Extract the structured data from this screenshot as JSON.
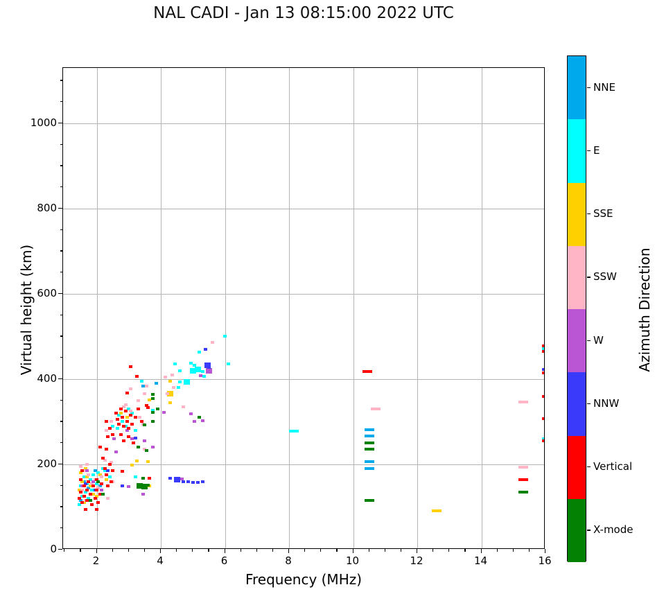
{
  "title": "NAL CADI - Jan 13 08:15:00 2022 UTC",
  "chart_data": {
    "type": "scatter",
    "title": "NAL CADI - Jan 13 08:15:00 2022 UTC",
    "xlabel": "Frequency (MHz)",
    "ylabel": "Virtual height (km)",
    "xlim": [
      0.95,
      16
    ],
    "ylim": [
      0,
      1130
    ],
    "xticks": [
      2,
      4,
      6,
      8,
      10,
      12,
      14,
      16
    ],
    "yticks": [
      0,
      200,
      400,
      600,
      800,
      1000
    ],
    "xminor_step": 0.5,
    "yminor_step": 50,
    "grid": true,
    "grid_color": "#b4b4b4",
    "colorbar": {
      "label": "Azimuth Direction",
      "categories_top_to_bottom": [
        {
          "name": "NNE",
          "color": "#00A8EC"
        },
        {
          "name": "E",
          "color": "#00FFFF"
        },
        {
          "name": "SSE",
          "color": "#FFD000"
        },
        {
          "name": "SSW",
          "color": "#FFB5C5"
        },
        {
          "name": "W",
          "color": "#BA55D3"
        },
        {
          "name": "NNW",
          "color": "#3A3AFA"
        },
        {
          "name": "Vertical",
          "color": "#FF0000"
        },
        {
          "name": "X-mode",
          "color": "#038103"
        }
      ]
    },
    "point_style_codes": {
      "0": "small square",
      "1": "wide dash",
      "2": "large block"
    },
    "series": [
      {
        "name": "NNE",
        "color": "#00A8EC",
        "points": [
          [
            1.6,
            160
          ],
          [
            1.75,
            145
          ],
          [
            1.95,
            185
          ],
          [
            2.1,
            150
          ],
          [
            1.5,
            115
          ],
          [
            3.85,
            390
          ],
          [
            3.45,
            383
          ],
          [
            10.5,
            281,
            1
          ],
          [
            10.5,
            267,
            1
          ],
          [
            10.5,
            206,
            1
          ],
          [
            10.5,
            190,
            1
          ]
        ]
      },
      {
        "name": "E",
        "color": "#00FFFF",
        "points": [
          [
            1.5,
            150
          ],
          [
            1.55,
            125
          ],
          [
            1.6,
            170
          ],
          [
            1.65,
            135
          ],
          [
            1.7,
            155
          ],
          [
            1.8,
            165
          ],
          [
            1.85,
            140
          ],
          [
            1.9,
            175
          ],
          [
            2.0,
            155
          ],
          [
            2.05,
            180
          ],
          [
            2.2,
            190
          ],
          [
            2.25,
            185
          ],
          [
            1.45,
            105
          ],
          [
            2.4,
            170
          ],
          [
            1.75,
            120
          ],
          [
            2.5,
            290
          ],
          [
            3.2,
            170
          ],
          [
            2.7,
            315
          ],
          [
            2.8,
            300
          ],
          [
            2.9,
            290
          ],
          [
            3.0,
            330
          ],
          [
            3.1,
            320
          ],
          [
            3.2,
            280
          ],
          [
            2.65,
            285
          ],
          [
            3.75,
            326
          ],
          [
            3.4,
            395
          ],
          [
            4.45,
            435
          ],
          [
            4.6,
            420
          ],
          [
            4.6,
            394
          ],
          [
            4.8,
            393,
            2
          ],
          [
            4.55,
            380
          ],
          [
            4.95,
            437
          ],
          [
            5.05,
            433
          ],
          [
            6.1,
            436
          ],
          [
            6.0,
            500
          ],
          [
            5.0,
            420,
            2
          ],
          [
            5.15,
            422,
            2
          ],
          [
            5.3,
            418
          ],
          [
            5.2,
            463
          ],
          [
            5.35,
            407
          ],
          [
            8.16,
            278,
            1
          ],
          [
            15.95,
            472
          ],
          [
            15.95,
            260
          ]
        ]
      },
      {
        "name": "SSE",
        "color": "#FFD000",
        "points": [
          [
            1.5,
            180
          ],
          [
            1.55,
            160
          ],
          [
            1.65,
            190
          ],
          [
            1.7,
            170
          ],
          [
            1.8,
            150
          ],
          [
            1.9,
            130
          ],
          [
            2.0,
            125
          ],
          [
            2.1,
            175
          ],
          [
            1.45,
            140
          ],
          [
            2.3,
            165
          ],
          [
            1.6,
            110
          ],
          [
            2.75,
            320
          ],
          [
            2.95,
            310
          ],
          [
            3.65,
            352
          ],
          [
            3.25,
            208
          ],
          [
            3.6,
            207
          ],
          [
            3.1,
            198
          ],
          [
            3.65,
            150
          ],
          [
            4.3,
            395
          ],
          [
            4.3,
            366,
            2
          ],
          [
            4.3,
            345
          ],
          [
            12.6,
            91,
            1
          ]
        ]
      },
      {
        "name": "SSW",
        "color": "#FFB5C5",
        "points": [
          [
            1.5,
            195
          ],
          [
            1.6,
            185
          ],
          [
            1.7,
            200
          ],
          [
            1.75,
            175
          ],
          [
            1.85,
            155
          ],
          [
            1.95,
            165
          ],
          [
            2.05,
            145
          ],
          [
            2.15,
            170
          ],
          [
            2.25,
            210
          ],
          [
            2.45,
            205
          ],
          [
            1.55,
            140
          ],
          [
            2.35,
            120
          ],
          [
            1.65,
            115
          ],
          [
            2.5,
            160
          ],
          [
            2.45,
            300
          ],
          [
            2.3,
            280
          ],
          [
            2.85,
            335
          ],
          [
            3.05,
            325
          ],
          [
            3.3,
            350
          ],
          [
            3.5,
            366
          ],
          [
            3.05,
            378
          ],
          [
            2.9,
            340
          ],
          [
            3.35,
            310
          ],
          [
            3.45,
            295
          ],
          [
            3.55,
            383
          ],
          [
            3.5,
            236
          ],
          [
            4.35,
            410
          ],
          [
            4.15,
            405
          ],
          [
            4.2,
            366
          ],
          [
            4.7,
            335
          ],
          [
            5.6,
            486
          ],
          [
            4.4,
            380
          ],
          [
            10.7,
            330,
            1
          ],
          [
            15.3,
            346,
            1
          ],
          [
            15.3,
            194,
            1
          ]
        ]
      },
      {
        "name": "W",
        "color": "#BA55D3",
        "points": [
          [
            1.7,
            185
          ],
          [
            1.9,
            160
          ],
          [
            2.15,
            140
          ],
          [
            1.55,
            150
          ],
          [
            2.55,
            260
          ],
          [
            2.95,
            280
          ],
          [
            3.1,
            260
          ],
          [
            3.5,
            255
          ],
          [
            3.75,
            240
          ],
          [
            4.1,
            322
          ],
          [
            4.95,
            318
          ],
          [
            5.05,
            300
          ],
          [
            5.3,
            302
          ],
          [
            3.0,
            148
          ],
          [
            4.65,
            166
          ],
          [
            2.6,
            230
          ],
          [
            3.45,
            130
          ],
          [
            5.5,
            420,
            2
          ],
          [
            5.25,
            408
          ]
        ]
      },
      {
        "name": "NNW",
        "color": "#3A3AFA",
        "points": [
          [
            1.65,
            155
          ],
          [
            1.95,
            140
          ],
          [
            2.35,
            185
          ],
          [
            3.2,
            262
          ],
          [
            2.8,
            150
          ],
          [
            4.3,
            168
          ],
          [
            4.5,
            165,
            2
          ],
          [
            4.55,
            162
          ],
          [
            4.7,
            160
          ],
          [
            4.85,
            160
          ],
          [
            5.0,
            158
          ],
          [
            5.15,
            158
          ],
          [
            5.3,
            160
          ],
          [
            5.4,
            470
          ],
          [
            5.45,
            432,
            2
          ],
          [
            5.5,
            428
          ],
          [
            15.95,
            422
          ]
        ]
      },
      {
        "name": "Vertical",
        "color": "#FF0000",
        "points": [
          [
            1.45,
            120
          ],
          [
            1.5,
            135
          ],
          [
            1.55,
            110
          ],
          [
            1.6,
            125
          ],
          [
            1.6,
            150
          ],
          [
            1.65,
            95
          ],
          [
            1.7,
            140
          ],
          [
            1.7,
            115
          ],
          [
            1.75,
            160
          ],
          [
            1.8,
            130
          ],
          [
            1.85,
            105
          ],
          [
            1.9,
            150
          ],
          [
            1.95,
            120
          ],
          [
            2.0,
            140
          ],
          [
            2.0,
            165
          ],
          [
            2.05,
            110
          ],
          [
            2.1,
            130
          ],
          [
            2.15,
            155
          ],
          [
            2.2,
            215
          ],
          [
            2.25,
            190
          ],
          [
            2.3,
            175
          ],
          [
            2.35,
            150
          ],
          [
            2.4,
            200
          ],
          [
            2.45,
            160
          ],
          [
            2.5,
            185
          ],
          [
            2.0,
            95
          ],
          [
            1.5,
            165
          ],
          [
            1.55,
            185
          ],
          [
            2.3,
            235
          ],
          [
            2.1,
            240
          ],
          [
            2.3,
            300
          ],
          [
            2.4,
            285
          ],
          [
            2.5,
            270
          ],
          [
            2.35,
            265
          ],
          [
            2.6,
            320
          ],
          [
            2.65,
            305
          ],
          [
            2.7,
            295
          ],
          [
            2.75,
            330
          ],
          [
            2.8,
            310
          ],
          [
            2.85,
            290
          ],
          [
            2.9,
            325
          ],
          [
            2.95,
            300
          ],
          [
            3.0,
            285
          ],
          [
            3.05,
            315
          ],
          [
            3.1,
            295
          ],
          [
            3.2,
            310
          ],
          [
            3.3,
            330
          ],
          [
            3.4,
            300
          ],
          [
            3.55,
            338
          ],
          [
            3.6,
            333
          ],
          [
            2.75,
            270
          ],
          [
            2.85,
            255
          ],
          [
            3.0,
            265
          ],
          [
            3.15,
            250
          ],
          [
            3.65,
            168
          ],
          [
            2.8,
            183
          ],
          [
            3.05,
            430
          ],
          [
            3.25,
            407
          ],
          [
            2.95,
            368
          ],
          [
            10.45,
            418,
            1
          ],
          [
            15.3,
            164,
            1
          ],
          [
            15.95,
            478
          ],
          [
            15.95,
            465
          ],
          [
            15.95,
            415
          ],
          [
            15.95,
            360
          ],
          [
            15.95,
            307
          ],
          [
            15.95,
            255
          ]
        ]
      },
      {
        "name": "X-mode",
        "color": "#038103",
        "points": [
          [
            1.8,
            115
          ],
          [
            2.05,
            160
          ],
          [
            2.2,
            130
          ],
          [
            3.75,
            364
          ],
          [
            3.75,
            355
          ],
          [
            3.9,
            330
          ],
          [
            3.75,
            322
          ],
          [
            3.5,
            292
          ],
          [
            3.3,
            240
          ],
          [
            3.55,
            232
          ],
          [
            5.2,
            310
          ],
          [
            3.75,
            300
          ],
          [
            3.45,
            167
          ],
          [
            3.35,
            150,
            2
          ],
          [
            3.5,
            148,
            2
          ],
          [
            3.6,
            152
          ],
          [
            3.3,
            152
          ],
          [
            10.5,
            250,
            1
          ],
          [
            10.5,
            236,
            1
          ],
          [
            10.5,
            115,
            1
          ],
          [
            15.3,
            135,
            1
          ]
        ]
      }
    ]
  }
}
